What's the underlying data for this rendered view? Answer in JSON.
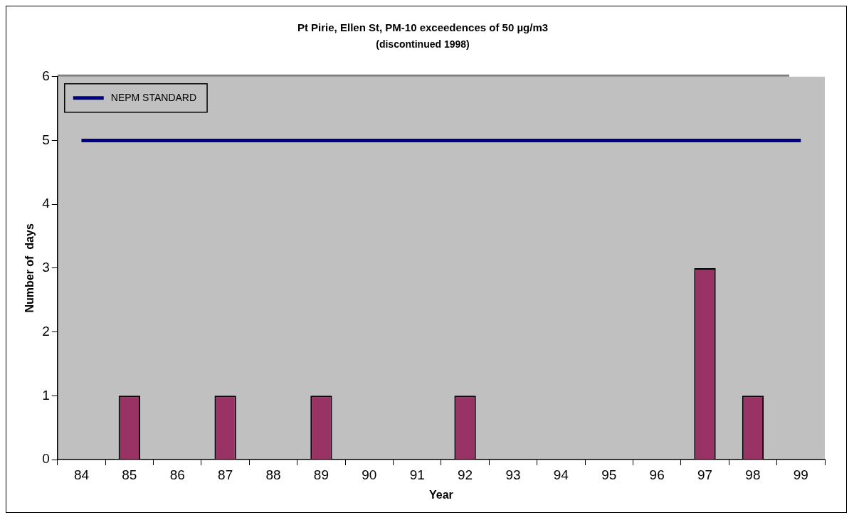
{
  "chart_data": {
    "type": "bar",
    "title": "Pt Pirie, Ellen St, PM-10 exceedences of 50 µg/m3",
    "subtitle": "(discontinued 1998)",
    "xlabel": "Year",
    "ylabel": "Number of  days",
    "categories": [
      "84",
      "85",
      "86",
      "87",
      "88",
      "89",
      "90",
      "91",
      "92",
      "93",
      "94",
      "95",
      "96",
      "97",
      "98",
      "99"
    ],
    "series": [
      {
        "color": "#993366",
        "values": [
          0,
          1,
          0,
          1,
          0,
          1,
          0,
          0,
          1,
          0,
          0,
          0,
          0,
          3,
          1,
          null
        ]
      },
      {
        "type": "line",
        "name": "NEPM STANDARD",
        "color": "#000080",
        "values": [
          5,
          5,
          5,
          5,
          5,
          5,
          5,
          5,
          5,
          5,
          5,
          5,
          5,
          5,
          5,
          5
        ]
      }
    ],
    "ylim": [
      0,
      6
    ],
    "yticks": [
      0,
      1,
      2,
      3,
      4,
      5,
      6
    ],
    "grid": false,
    "legend": "top left",
    "marker": "none"
  }
}
